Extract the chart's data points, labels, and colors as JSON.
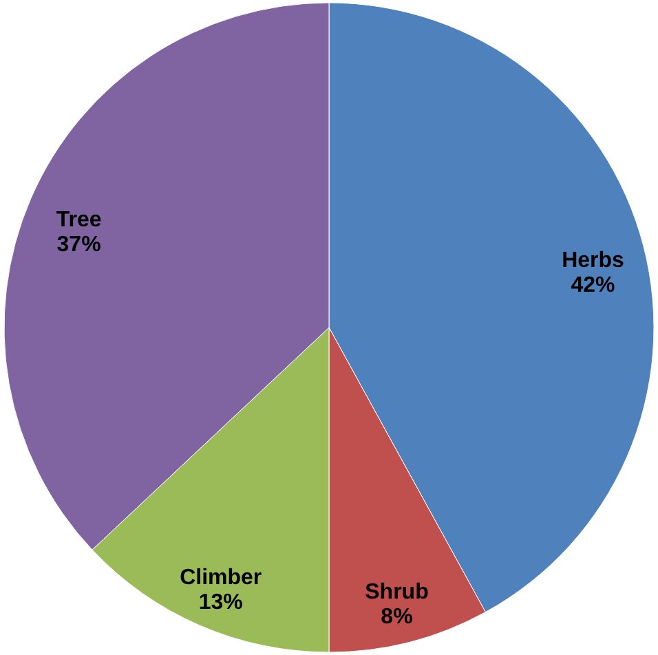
{
  "chart_data": {
    "type": "pie",
    "categories": [
      "Herbs",
      "Shrub",
      "Climber",
      "Tree"
    ],
    "values": [
      42,
      8,
      13,
      37
    ],
    "colors": [
      "#4f81bd",
      "#c0504d",
      "#9bbb59",
      "#8064a2"
    ],
    "value_labels": [
      "42%",
      "8%",
      "13%",
      "37%"
    ]
  }
}
